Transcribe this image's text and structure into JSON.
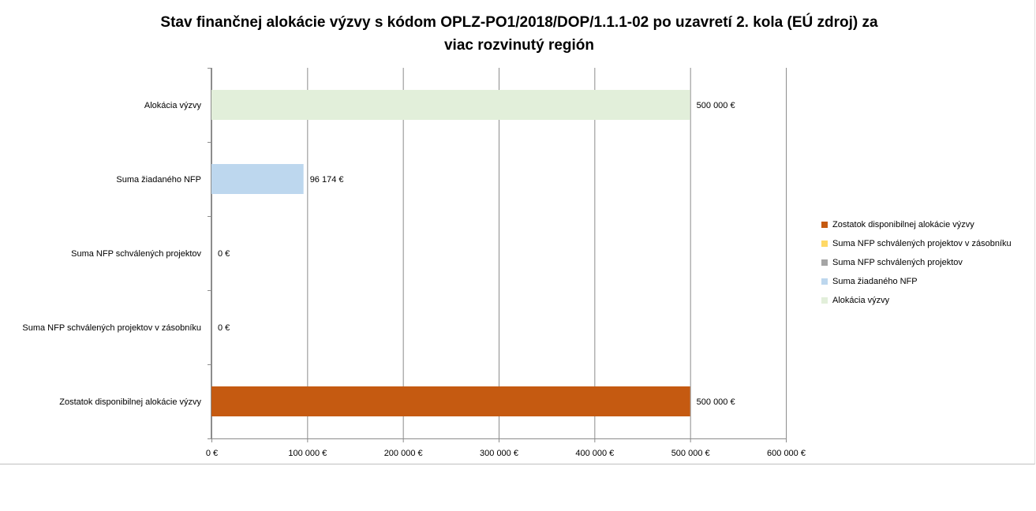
{
  "chart_data": {
    "type": "bar",
    "orientation": "horizontal",
    "title_lines": [
      "Stav finančnej alokácie výzvy s kódom OPLZ-PO1/2018/DOP/1.1.1-02 po uzavretí 2. kola (EÚ zdroj) za",
      "viac rozvinutý región"
    ],
    "categories": [
      "Alokácia výzvy",
      "Suma žiadaného NFP",
      "Suma NFP schválených projektov",
      "Suma NFP schválených projektov v zásobníku",
      "Zostatok disponibilnej alokácie výzvy"
    ],
    "values": [
      500000,
      96174,
      0,
      0,
      500000
    ],
    "value_labels": [
      "500 000 €",
      "96 174 €",
      "0 €",
      "0 €",
      "500 000 €"
    ],
    "colors": [
      "#e2efda",
      "#bdd7ee",
      "#a5a5a5",
      "#ffd966",
      "#c55a11"
    ],
    "xlim": [
      0,
      600000
    ],
    "x_ticks": [
      0,
      100000,
      200000,
      300000,
      400000,
      500000,
      600000
    ],
    "x_tick_labels": [
      "0 €",
      "100 000 €",
      "200 000 €",
      "300 000 €",
      "400 000 €",
      "500 000 €",
      "600 000 €"
    ],
    "grid": true,
    "legend_position": "right",
    "legend": [
      {
        "label": "Zostatok disponibilnej alokácie výzvy",
        "color": "#c55a11"
      },
      {
        "label": "Suma NFP schválených projektov v zásobníku",
        "color": "#ffd966"
      },
      {
        "label": "Suma NFP schválených projektov",
        "color": "#a5a5a5"
      },
      {
        "label": "Suma žiadaného NFP",
        "color": "#bdd7ee"
      },
      {
        "label": "Alokácia výzvy",
        "color": "#e2efda"
      }
    ]
  }
}
